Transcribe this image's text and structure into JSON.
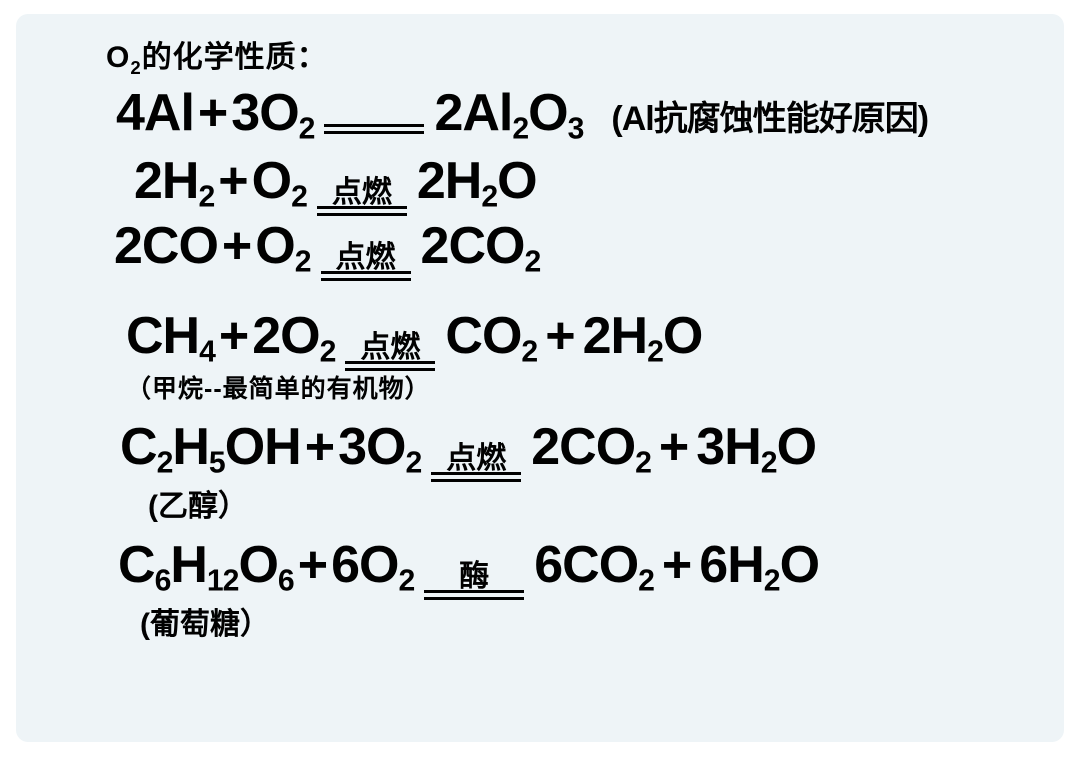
{
  "title_html": "O<sub>2</sub>的化学性质：",
  "equations": {
    "e1": {
      "lhs1": "4Al",
      "lhs2": "3O<sub>2</sub>",
      "cond": "",
      "rhs": "2Al<sub>2</sub>O<sub>3</sub>",
      "comment": "(Al抗腐蚀性能好原因)"
    },
    "e2": {
      "lhs1": "2H<sub>2</sub>",
      "lhs2": "O<sub>2</sub>",
      "cond": "点燃",
      "rhs": "2H<sub>2</sub>O"
    },
    "e3": {
      "lhs1": "2CO",
      "lhs2": "O<sub>2</sub>",
      "cond": "点燃",
      "rhs": "2CO<sub>2</sub>"
    },
    "e4": {
      "lhs1": "CH<sub>4</sub>",
      "lhs2": "2O<sub>2</sub>",
      "cond": "点燃",
      "rhs1": "CO<sub>2</sub>",
      "rhs2": "2H<sub>2</sub>O",
      "note": "（甲烷--最简单的有机物）"
    },
    "e5": {
      "lhs1": "C<sub>2</sub>H<sub>5</sub>OH",
      "lhs2": "3O<sub>2</sub>",
      "cond": "点燃",
      "rhs1": "2CO<sub>2</sub>",
      "rhs2": "3H<sub>2</sub>O",
      "note": "(乙醇）"
    },
    "e6": {
      "lhs1": "C<sub>6</sub>H<sub>12</sub>O<sub>6</sub>",
      "lhs2": "6O<sub>2</sub>",
      "cond": "酶",
      "rhs1": "6CO<sub>2</sub>",
      "rhs2": "6H<sub>2</sub>O",
      "note": "(葡萄糖）"
    }
  },
  "style": {
    "background": "#eef4f7",
    "text_color": "#010101",
    "title_fontsize": 30,
    "formula_fontsize": 52,
    "condition_fontsize": 30,
    "note_fontsize": 30,
    "line_width": 90,
    "line_gap": 4
  }
}
